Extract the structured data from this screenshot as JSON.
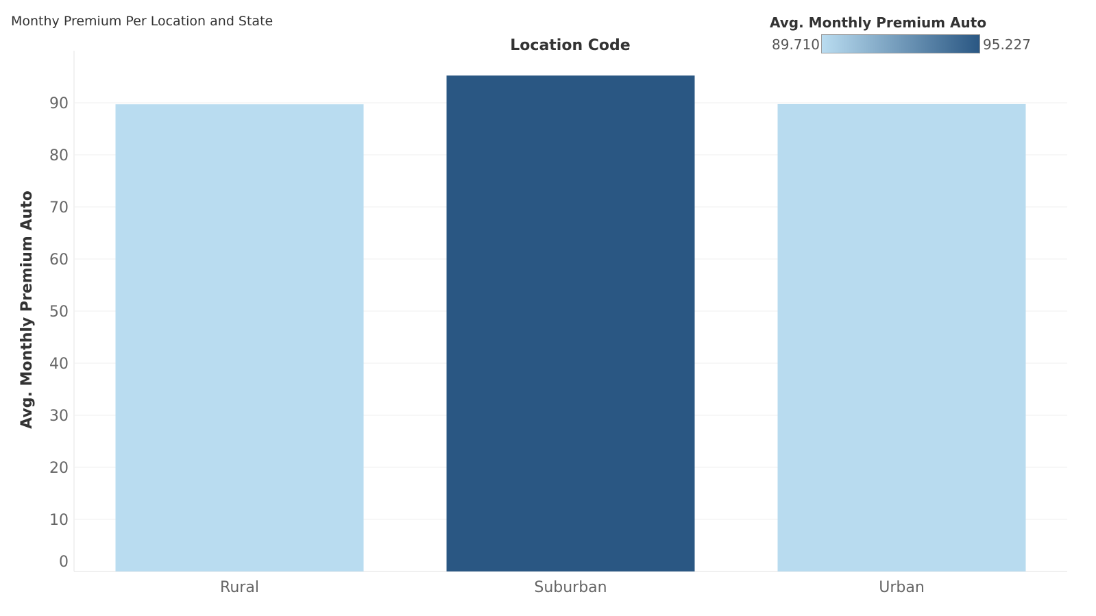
{
  "page": {
    "title": "Monthy Premium Per Location and State"
  },
  "legend": {
    "title": "Avg. Monthly Premium Auto",
    "min_label": "89.710",
    "max_label": "95.227",
    "color_low": "#b9dcf0",
    "color_high": "#2a5783"
  },
  "chart_data": {
    "type": "bar",
    "column_header": "Location Code",
    "categories": [
      "Rural",
      "Suburban",
      "Urban"
    ],
    "values": [
      89.71,
      95.227,
      89.75
    ],
    "ylabel": "Avg. Monthly Premium Auto",
    "ylim": [
      0,
      100
    ],
    "yticks": [
      0,
      10,
      20,
      30,
      40,
      50,
      60,
      70,
      80,
      90
    ],
    "grid": true,
    "legend_position": "top-right"
  }
}
